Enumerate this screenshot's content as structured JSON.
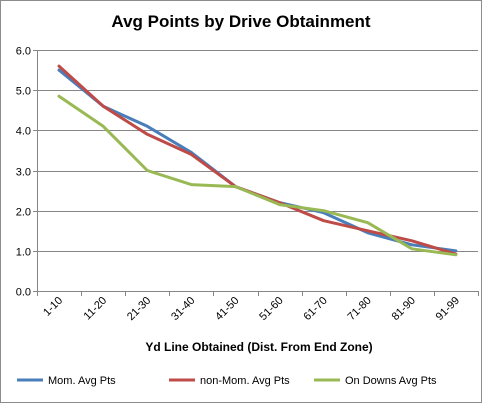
{
  "chart_data": {
    "type": "line",
    "title": "Avg Points by Drive Obtainment",
    "xlabel": "Yd Line Obtained (Dist. From End Zone)",
    "ylabel": "",
    "categories": [
      "1-10",
      "11-20",
      "21-30",
      "31-40",
      "41-50",
      "51-60",
      "61-70",
      "71-80",
      "81-90",
      "91-99"
    ],
    "ylim": [
      0,
      6
    ],
    "yticks": [
      "0.0",
      "1.0",
      "2.0",
      "3.0",
      "4.0",
      "5.0",
      "6.0"
    ],
    "grid": true,
    "legend": "bottom",
    "series": [
      {
        "name": "Mom. Avg Pts",
        "color": "#4a7ebb",
        "values": [
          5.5,
          4.6,
          4.1,
          3.45,
          2.6,
          2.2,
          1.95,
          1.45,
          1.15,
          1.0
        ]
      },
      {
        "name": "non-Mom. Avg Pts",
        "color": "#be4b48",
        "values": [
          5.6,
          4.6,
          3.9,
          3.4,
          2.6,
          2.2,
          1.75,
          1.5,
          1.25,
          0.92
        ]
      },
      {
        "name": "On Downs Avg Pts",
        "color": "#98b954",
        "values": [
          4.85,
          4.1,
          3.0,
          2.65,
          2.6,
          2.15,
          2.0,
          1.7,
          1.05,
          0.9
        ]
      }
    ]
  }
}
